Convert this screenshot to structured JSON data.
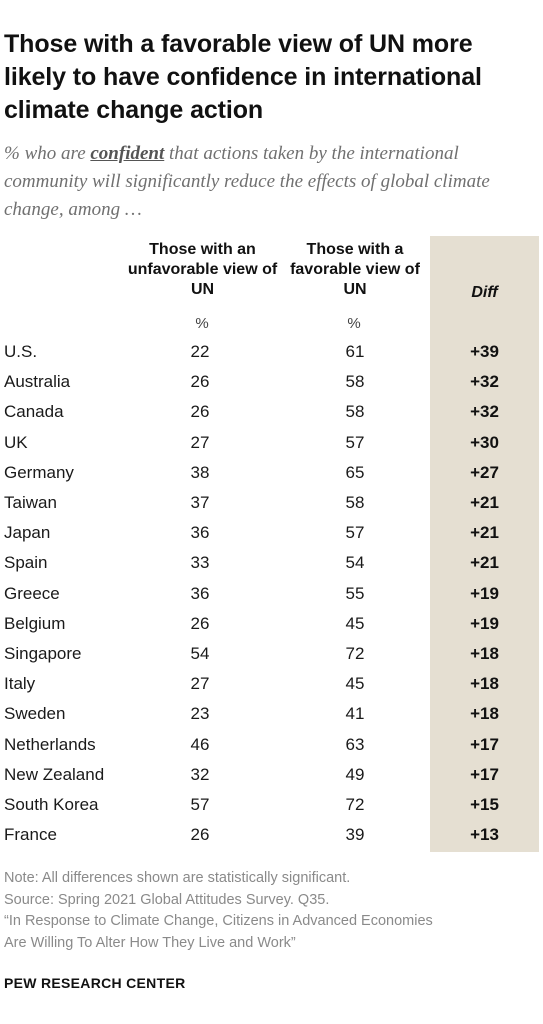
{
  "title": "Those with a favorable view of UN more likely to have confidence in international climate change action",
  "subtitle": {
    "before": "% who are ",
    "keyword": "confident",
    "after": " that actions taken by the international community will significantly reduce the effects of global climate change, among …"
  },
  "chart_data": {
    "type": "table",
    "columns": [
      "Those with an unfavorable view of UN",
      "Those with a favorable view of UN",
      "Diff"
    ],
    "unit_label": "%",
    "rows": [
      {
        "country": "U.S.",
        "unfavorable": "22",
        "favorable": "61",
        "diff": "+39"
      },
      {
        "country": "Australia",
        "unfavorable": "26",
        "favorable": "58",
        "diff": "+32"
      },
      {
        "country": "Canada",
        "unfavorable": "26",
        "favorable": "58",
        "diff": "+32"
      },
      {
        "country": "UK",
        "unfavorable": "27",
        "favorable": "57",
        "diff": "+30"
      },
      {
        "country": "Germany",
        "unfavorable": "38",
        "favorable": "65",
        "diff": "+27"
      },
      {
        "country": "Taiwan",
        "unfavorable": "37",
        "favorable": "58",
        "diff": "+21"
      },
      {
        "country": "Japan",
        "unfavorable": "36",
        "favorable": "57",
        "diff": "+21"
      },
      {
        "country": "Spain",
        "unfavorable": "33",
        "favorable": "54",
        "diff": "+21"
      },
      {
        "country": "Greece",
        "unfavorable": "36",
        "favorable": "55",
        "diff": "+19"
      },
      {
        "country": "Belgium",
        "unfavorable": "26",
        "favorable": "45",
        "diff": "+19"
      },
      {
        "country": "Singapore",
        "unfavorable": "54",
        "favorable": "72",
        "diff": "+18"
      },
      {
        "country": "Italy",
        "unfavorable": "27",
        "favorable": "45",
        "diff": "+18"
      },
      {
        "country": "Sweden",
        "unfavorable": "23",
        "favorable": "41",
        "diff": "+18"
      },
      {
        "country": "Netherlands",
        "unfavorable": "46",
        "favorable": "63",
        "diff": "+17"
      },
      {
        "country": "New Zealand",
        "unfavorable": "32",
        "favorable": "49",
        "diff": "+17"
      },
      {
        "country": "South Korea",
        "unfavorable": "57",
        "favorable": "72",
        "diff": "+15"
      },
      {
        "country": "France",
        "unfavorable": "26",
        "favorable": "39",
        "diff": "+13"
      }
    ],
    "diff_column_color": "#e5dfd2"
  },
  "notes": [
    "Note: All differences shown are statistically significant.",
    "Source: Spring 2021 Global Attitudes Survey. Q35.",
    "“In Response to Climate Change, Citizens in Advanced Economies",
    "Are Willing To Alter How They Live and Work”"
  ],
  "brand": "PEW RESEARCH CENTER"
}
